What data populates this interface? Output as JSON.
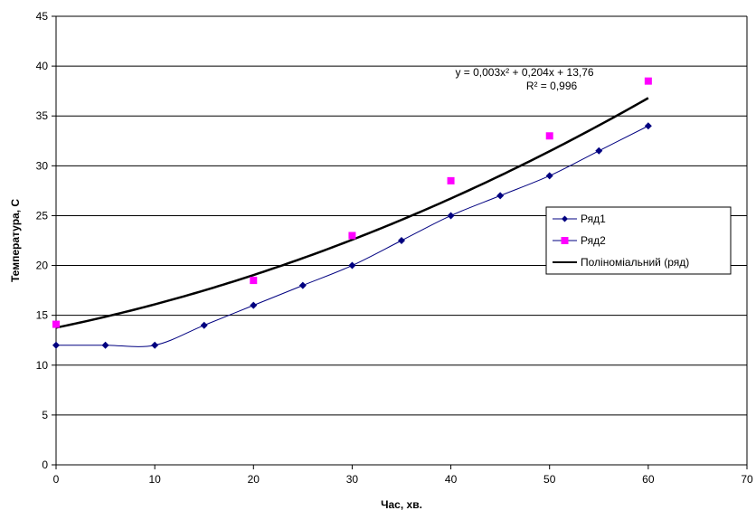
{
  "chart_data": {
    "type": "scatter",
    "xlabel": "Час, хв.",
    "ylabel": "Температура, С",
    "xlim": [
      0,
      70
    ],
    "ylim": [
      0,
      45
    ],
    "x_ticks": [
      0,
      10,
      20,
      30,
      40,
      50,
      60,
      70
    ],
    "y_ticks": [
      0,
      5,
      10,
      15,
      20,
      25,
      30,
      35,
      40,
      45
    ],
    "grid": "horizontal",
    "legend_position": "right",
    "series": [
      {
        "name": "Ряд1",
        "style": "smooth-line-with-diamond-markers",
        "color": "#000080",
        "x": [
          0,
          5,
          10,
          15,
          20,
          25,
          30,
          35,
          40,
          45,
          50,
          55,
          60
        ],
        "y": [
          12,
          12,
          12,
          14,
          16,
          18,
          20,
          22.5,
          25,
          27,
          29,
          31.5,
          34
        ]
      },
      {
        "name": "Ряд2",
        "style": "square-markers",
        "color": "#ff00ff",
        "x": [
          0,
          20,
          30,
          40,
          50,
          60
        ],
        "y": [
          14.1,
          18.5,
          23,
          28.5,
          33,
          38.5
        ]
      },
      {
        "name": "Поліноміальний (ряд)",
        "style": "trendline",
        "color": "#000000",
        "coefficients": [
          0.003,
          0.204,
          13.76
        ],
        "x_range": [
          0,
          60
        ]
      }
    ],
    "annotations": {
      "equation": "y = 0,003x² + 0,204x + 13,76",
      "r_squared": "R² = 0,996"
    }
  }
}
